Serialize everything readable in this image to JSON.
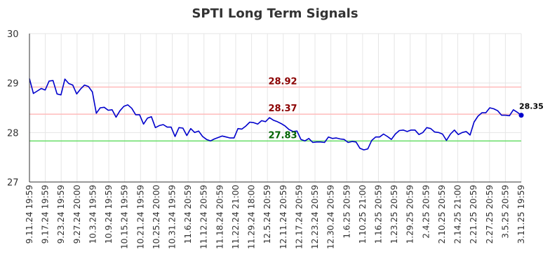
{
  "chart_data": {
    "type": "line",
    "title": "SPTI Long Term Signals",
    "xlabel": "",
    "ylabel": "",
    "ylim": [
      27,
      30
    ],
    "yticks": [
      "27",
      "28",
      "29",
      "30"
    ],
    "grid": true,
    "xtick_labels": [
      "9.11.24 19:59",
      "9.17.24 19:59",
      "9.23.24 19:59",
      "9.27.24 20:00",
      "10.3.24 19:59",
      "10.9.24 19:59",
      "10.15.24 19:59",
      "10.21.24 19:59",
      "10.25.24 20:00",
      "10.31.24 19:59",
      "11.6.24 20:59",
      "11.12.24 20:59",
      "11.18.24 20:59",
      "11.22.24 21:00",
      "11.29.24 18:00",
      "12.5.24 20:59",
      "12.11.24 20:59",
      "12.17.24 20:59",
      "12.23.24 20:59",
      "12.30.24 20:59",
      "1.6.25 20:59",
      "1.10.25 21:00",
      "1.16.25 20:59",
      "1.23.25 20:59",
      "1.29.25 20:59",
      "2.4.25 20:59",
      "2.10.25 20:59",
      "2.14.25 21:00",
      "2.21.25 20:59",
      "2.27.25 20:59",
      "3.5.25 20:59",
      "3.11.25 19:59"
    ],
    "series": [
      {
        "color": "#0000cc",
        "values": [
          29.09,
          28.79,
          28.84,
          28.89,
          28.86,
          29.04,
          29.05,
          28.78,
          28.76,
          29.08,
          28.99,
          28.96,
          28.78,
          28.88,
          28.96,
          28.93,
          28.82,
          28.39,
          28.5,
          28.51,
          28.45,
          28.46,
          28.31,
          28.44,
          28.53,
          28.56,
          28.49,
          28.36,
          28.36,
          28.17,
          28.29,
          28.32,
          28.1,
          28.14,
          28.16,
          28.11,
          28.11,
          27.92,
          28.1,
          28.09,
          27.94,
          28.08,
          28.0,
          28.03,
          27.92,
          27.86,
          27.83,
          27.87,
          27.9,
          27.93,
          27.91,
          27.89,
          27.89,
          28.08,
          28.07,
          28.13,
          28.21,
          28.2,
          28.17,
          28.24,
          28.22,
          28.3,
          28.25,
          28.22,
          28.18,
          28.13,
          28.06,
          28.02,
          28.03,
          27.86,
          27.83,
          27.88,
          27.8,
          27.81,
          27.81,
          27.8,
          27.91,
          27.88,
          27.89,
          27.87,
          27.86,
          27.8,
          27.82,
          27.81,
          27.68,
          27.65,
          27.67,
          27.84,
          27.91,
          27.91,
          27.97,
          27.92,
          27.86,
          27.97,
          28.04,
          28.05,
          28.02,
          28.05,
          28.05,
          27.96,
          28.0,
          28.1,
          28.08,
          28.01,
          28.0,
          27.97,
          27.84,
          27.97,
          28.05,
          27.96,
          28.0,
          28.02,
          27.95,
          28.21,
          28.33,
          28.4,
          28.4,
          28.5,
          28.48,
          28.44,
          28.35,
          28.35,
          28.34,
          28.46,
          28.41,
          28.35
        ]
      }
    ],
    "last_value_label": "28.35",
    "hlines": [
      {
        "value": 28.92,
        "label": "28.92",
        "line_color": "#ffbbbb",
        "label_color": "#8b0000"
      },
      {
        "value": 28.37,
        "label": "28.37",
        "line_color": "#ffbbbb",
        "label_color": "#8b0000"
      },
      {
        "value": 27.83,
        "label": "27.83",
        "line_color": "#66dd66",
        "label_color": "#006400"
      }
    ]
  }
}
